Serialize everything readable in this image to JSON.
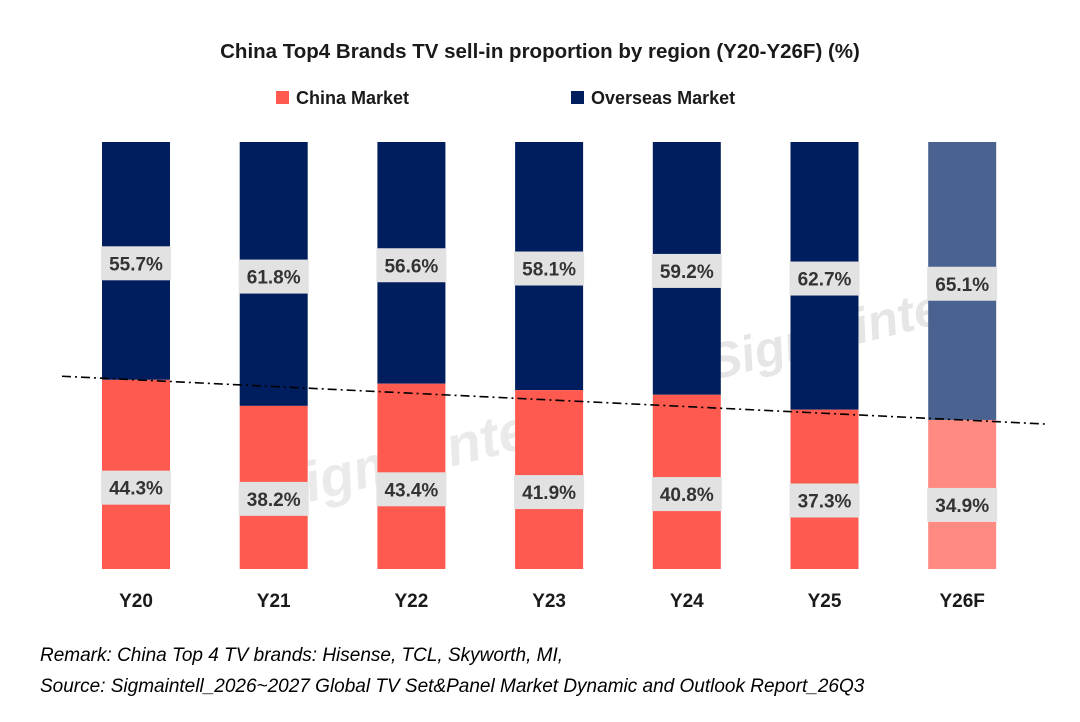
{
  "chart_data": {
    "type": "bar",
    "stacked": true,
    "title": "China Top4 Brands TV sell-in proportion by region (Y20-Y26F) (%)",
    "categories": [
      "Y20",
      "Y21",
      "Y22",
      "Y23",
      "Y24",
      "Y25",
      "Y26F"
    ],
    "series": [
      {
        "name": "China Market",
        "values": [
          44.3,
          38.2,
          43.4,
          41.9,
          40.8,
          37.3,
          34.9
        ],
        "labels": [
          "44.3%",
          "38.2%",
          "43.4%",
          "41.9%",
          "40.8%",
          "37.3%",
          "34.9%"
        ],
        "color": "#ff5a50",
        "forecast_color": "#ff8a82"
      },
      {
        "name": "Overseas Market",
        "values": [
          55.7,
          61.8,
          56.6,
          58.1,
          59.2,
          62.7,
          65.1
        ],
        "labels": [
          "55.7%",
          "61.8%",
          "56.6%",
          "58.1%",
          "59.2%",
          "62.7%",
          "65.1%"
        ],
        "color": "#001e5e",
        "forecast_color": "#4a6290"
      }
    ],
    "forecast_categories": [
      "Y26F"
    ],
    "ylim": [
      0,
      100
    ],
    "trend_line": "dash-dot",
    "legend_position": "top-center",
    "watermark": "Sigmaintell"
  },
  "remark": "Remark: China Top 4 TV brands: Hisense, TCL, Skyworth, MI,",
  "source": "Source: Sigmaintell_2026~2027 Global TV Set&Panel Market Dynamic and Outlook Report_26Q3"
}
